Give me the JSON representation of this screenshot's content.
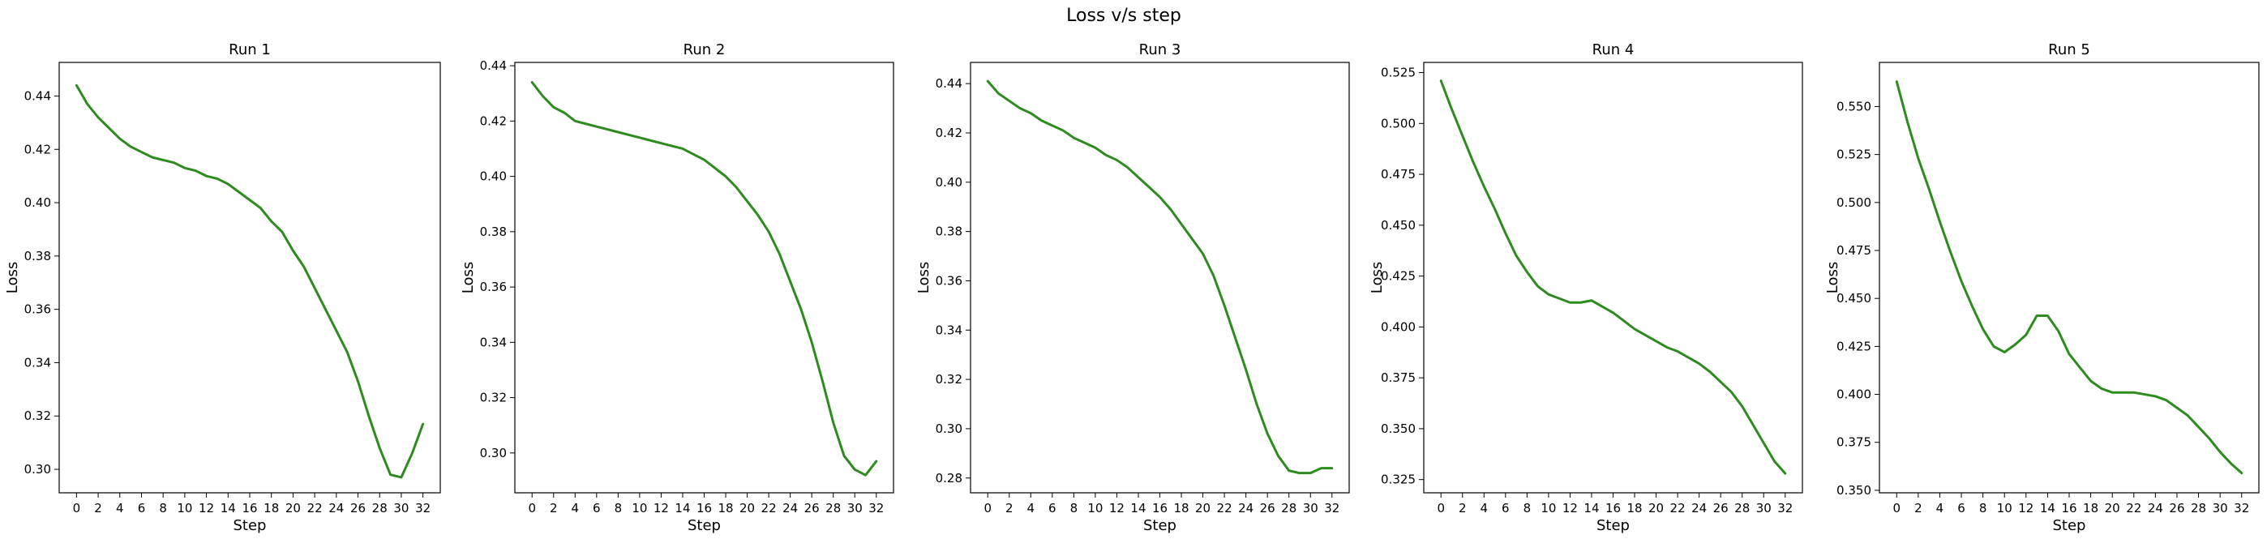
{
  "suptitle": "Loss v/s step",
  "style": {
    "line_color": "#2e8b1f",
    "axes_color": "#000000",
    "background": "#ffffff"
  },
  "x_ticks": [
    0,
    2,
    4,
    6,
    8,
    10,
    12,
    14,
    16,
    18,
    20,
    22,
    24,
    26,
    28,
    30,
    32
  ],
  "chart_data": [
    {
      "type": "line",
      "title": "Run 1",
      "xlabel": "Step",
      "ylabel": "Loss",
      "xlim": [
        -1.6,
        33.6
      ],
      "ylim": [
        0.2912,
        0.4526
      ],
      "yticks": [
        0.3,
        0.32,
        0.34,
        0.36,
        0.38,
        0.4,
        0.42,
        0.44
      ],
      "ytick_labels": [
        "0.30",
        "0.32",
        "0.34",
        "0.36",
        "0.38",
        "0.40",
        "0.42",
        "0.44"
      ],
      "x": [
        0,
        1,
        2,
        3,
        4,
        5,
        6,
        7,
        8,
        9,
        10,
        11,
        12,
        13,
        14,
        15,
        16,
        17,
        18,
        19,
        20,
        21,
        22,
        23,
        24,
        25,
        26,
        27,
        28,
        29,
        30,
        31,
        32
      ],
      "y": [
        0.444,
        0.437,
        0.432,
        0.428,
        0.424,
        0.421,
        0.419,
        0.417,
        0.416,
        0.415,
        0.413,
        0.412,
        0.41,
        0.409,
        0.407,
        0.404,
        0.401,
        0.398,
        0.393,
        0.389,
        0.382,
        0.376,
        0.368,
        0.36,
        0.352,
        0.344,
        0.333,
        0.32,
        0.308,
        0.298,
        0.297,
        0.306,
        0.317
      ]
    },
    {
      "type": "line",
      "title": "Run 2",
      "xlabel": "Step",
      "ylabel": "Loss",
      "xlim": [
        -1.6,
        33.6
      ],
      "ylim": [
        0.2856,
        0.4412
      ],
      "yticks": [
        0.3,
        0.32,
        0.34,
        0.36,
        0.38,
        0.4,
        0.42,
        0.44
      ],
      "ytick_labels": [
        "0.30",
        "0.32",
        "0.34",
        "0.36",
        "0.38",
        "0.40",
        "0.42",
        "0.44"
      ],
      "x": [
        0,
        1,
        2,
        3,
        4,
        5,
        6,
        7,
        8,
        9,
        10,
        11,
        12,
        13,
        14,
        15,
        16,
        17,
        18,
        19,
        20,
        21,
        22,
        23,
        24,
        25,
        26,
        27,
        28,
        29,
        30,
        31,
        32
      ],
      "y": [
        0.434,
        0.429,
        0.425,
        0.423,
        0.42,
        0.419,
        0.418,
        0.417,
        0.416,
        0.415,
        0.414,
        0.413,
        0.412,
        0.411,
        0.41,
        0.408,
        0.406,
        0.403,
        0.4,
        0.396,
        0.391,
        0.386,
        0.38,
        0.372,
        0.362,
        0.352,
        0.34,
        0.326,
        0.311,
        0.299,
        0.294,
        0.292,
        0.297
      ]
    },
    {
      "type": "line",
      "title": "Run 3",
      "xlabel": "Step",
      "ylabel": "Loss",
      "xlim": [
        -1.6,
        33.6
      ],
      "ylim": [
        0.274,
        0.4486
      ],
      "yticks": [
        0.28,
        0.3,
        0.32,
        0.34,
        0.36,
        0.38,
        0.4,
        0.42,
        0.44
      ],
      "ytick_labels": [
        "0.28",
        "0.30",
        "0.32",
        "0.34",
        "0.36",
        "0.38",
        "0.40",
        "0.42",
        "0.44"
      ],
      "x": [
        0,
        1,
        2,
        3,
        4,
        5,
        6,
        7,
        8,
        9,
        10,
        11,
        12,
        13,
        14,
        15,
        16,
        17,
        18,
        19,
        20,
        21,
        22,
        23,
        24,
        25,
        26,
        27,
        28,
        29,
        30,
        31,
        32
      ],
      "y": [
        0.441,
        0.436,
        0.433,
        0.43,
        0.428,
        0.425,
        0.423,
        0.421,
        0.418,
        0.416,
        0.414,
        0.411,
        0.409,
        0.406,
        0.402,
        0.398,
        0.394,
        0.389,
        0.383,
        0.377,
        0.371,
        0.362,
        0.35,
        0.337,
        0.324,
        0.31,
        0.298,
        0.289,
        0.283,
        0.282,
        0.282,
        0.284,
        0.284
      ]
    },
    {
      "type": "line",
      "title": "Run 4",
      "xlabel": "Step",
      "ylabel": "Loss",
      "xlim": [
        -1.6,
        33.6
      ],
      "ylim": [
        0.3185,
        0.53
      ],
      "yticks": [
        0.325,
        0.35,
        0.375,
        0.4,
        0.425,
        0.45,
        0.475,
        0.5,
        0.525
      ],
      "ytick_labels": [
        "0.325",
        "0.350",
        "0.375",
        "0.400",
        "0.425",
        "0.450",
        "0.475",
        "0.500",
        "0.525"
      ],
      "x": [
        0,
        1,
        2,
        3,
        4,
        5,
        6,
        7,
        8,
        9,
        10,
        11,
        12,
        13,
        14,
        15,
        16,
        17,
        18,
        19,
        20,
        21,
        22,
        23,
        24,
        25,
        26,
        27,
        28,
        29,
        30,
        31,
        32
      ],
      "y": [
        0.521,
        0.507,
        0.494,
        0.481,
        0.469,
        0.458,
        0.446,
        0.435,
        0.427,
        0.42,
        0.416,
        0.414,
        0.412,
        0.412,
        0.413,
        0.41,
        0.407,
        0.403,
        0.399,
        0.396,
        0.393,
        0.39,
        0.388,
        0.385,
        0.382,
        0.378,
        0.373,
        0.368,
        0.361,
        0.352,
        0.343,
        0.334,
        0.328
      ]
    },
    {
      "type": "line",
      "title": "Run 5",
      "xlabel": "Step",
      "ylabel": "Loss",
      "xlim": [
        -1.6,
        33.6
      ],
      "ylim": [
        0.3487,
        0.573
      ],
      "yticks": [
        0.35,
        0.375,
        0.4,
        0.425,
        0.45,
        0.475,
        0.5,
        0.525,
        0.55
      ],
      "ytick_labels": [
        "0.350",
        "0.375",
        "0.400",
        "0.425",
        "0.450",
        "0.475",
        "0.500",
        "0.525",
        "0.550"
      ],
      "x": [
        0,
        1,
        2,
        3,
        4,
        5,
        6,
        7,
        8,
        9,
        10,
        11,
        12,
        13,
        14,
        15,
        16,
        17,
        18,
        19,
        20,
        21,
        22,
        23,
        24,
        25,
        26,
        27,
        28,
        29,
        30,
        31,
        32
      ],
      "y": [
        0.563,
        0.542,
        0.523,
        0.507,
        0.49,
        0.474,
        0.459,
        0.446,
        0.434,
        0.425,
        0.422,
        0.426,
        0.431,
        0.441,
        0.441,
        0.433,
        0.421,
        0.414,
        0.407,
        0.403,
        0.401,
        0.401,
        0.401,
        0.4,
        0.399,
        0.397,
        0.393,
        0.389,
        0.383,
        0.377,
        0.37,
        0.364,
        0.359
      ]
    }
  ]
}
